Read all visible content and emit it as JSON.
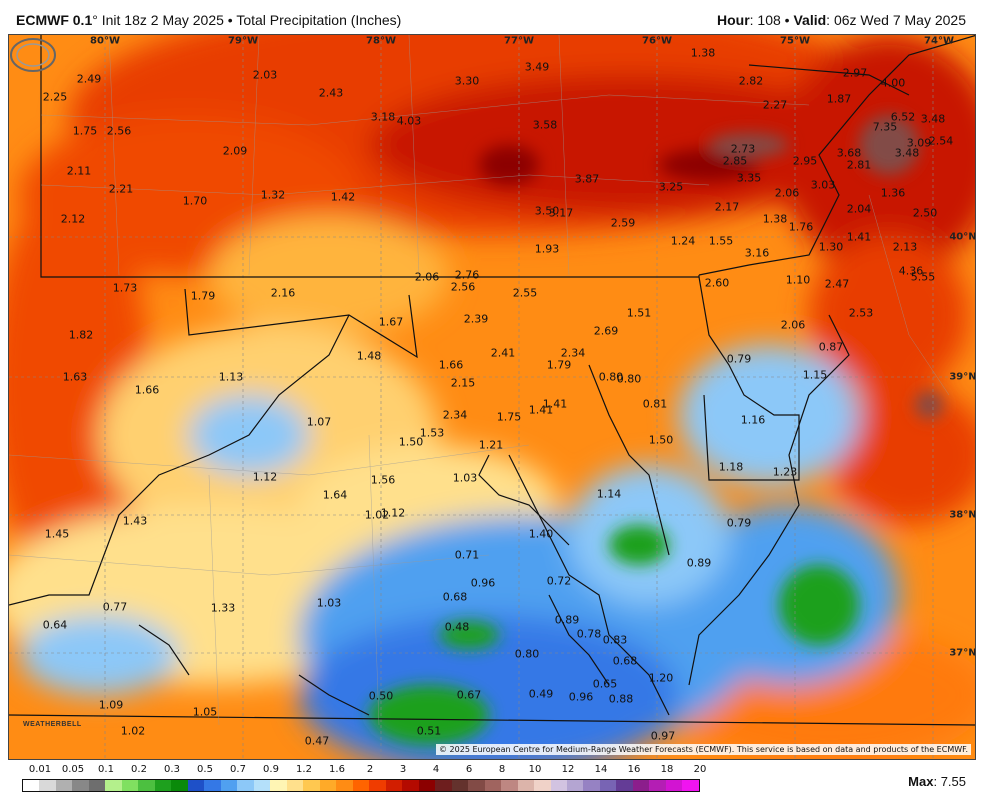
{
  "header": {
    "model": "ECMWF 0.1",
    "degree_symbol": "°",
    "init": "Init 18z 2 May 2025 • Total Precipitation (Inches)",
    "hour_label": "Hour",
    "hour_value": ": 108 • ",
    "valid_label": "Valid",
    "valid_value": ": 06z Wed 7 May 2025"
  },
  "map": {
    "longitudes": [
      "80°W",
      "79°W",
      "78°W",
      "77°W",
      "76°W",
      "75°W",
      "74°W"
    ],
    "latitudes": [
      "40°N",
      "39°N",
      "38°N",
      "37°N"
    ],
    "values": [
      "1.38",
      "2.49",
      "2.03",
      "3.30",
      "3.49",
      "2.82",
      "2.97",
      "4.00",
      "2.25",
      "2.43",
      "3.18",
      "4.03",
      "3.58",
      "2.27",
      "1.87",
      "6.52",
      "3.48",
      "1.75",
      "2.56",
      "7.35",
      "2.09",
      "2.73",
      "3.68",
      "3.48",
      "3.09",
      "2.54",
      "2.11",
      "2.85",
      "2.95",
      "2.81",
      "2.21",
      "3.87",
      "3.25",
      "3.35",
      "3.03",
      "1.70",
      "1.32",
      "1.42",
      "2.06",
      "1.36",
      "3.50",
      "3.17",
      "2.17",
      "2.04",
      "2.50",
      "2.12",
      "2.59",
      "1.38",
      "1.76",
      "1.24",
      "1.55",
      "1.41",
      "1.93",
      "1.30",
      "2.13",
      "3.16",
      "2.06",
      "2.76",
      "4.36",
      "1.10",
      "5.55",
      "1.73",
      "2.56",
      "2.60",
      "2.47",
      "1.79",
      "2.16",
      "2.55",
      "1.67",
      "1.51",
      "2.53",
      "2.39",
      "2.69",
      "2.06",
      "1.82",
      "1.48",
      "2.41",
      "2.34",
      "0.79",
      "0.87",
      "1.66",
      "1.79",
      "1.63",
      "1.13",
      "1.15",
      "2.15",
      "0.80",
      "0.80",
      "1.66",
      "1.41",
      "0.81",
      "1.07",
      "2.34",
      "1.75",
      "1.41",
      "1.16",
      "1.53",
      "1.50",
      "1.50",
      "1.21",
      "1.12",
      "1.56",
      "1.03",
      "1.18",
      "1.64",
      "1.02",
      "1.14",
      "1.23",
      "1.45",
      "1.43",
      "1.12",
      "0.79",
      "1.40",
      "0.71",
      "0.89",
      "0.96",
      "0.72",
      "0.77",
      "1.33",
      "1.03",
      "0.68",
      "0.64",
      "0.89",
      "0.48",
      "0.78",
      "0.83",
      "0.80",
      "0.68",
      "1.20",
      "0.50",
      "0.67",
      "0.49",
      "0.96",
      "0.65",
      "1.09",
      "0.88",
      "1.05",
      "1.02",
      "0.51",
      "0.47",
      "0.97"
    ],
    "copyright": "© 2025 European Centre for Medium-Range Weather Forecasts (ECMWF). This service is based on data and products of the ECMWF.",
    "logo_text": "WEATHERBELL"
  },
  "legend": {
    "ticks": [
      "0.01",
      "0.05",
      "0.1",
      "0.2",
      "0.3",
      "0.5",
      "0.7",
      "0.9",
      "1.2",
      "1.6",
      "2",
      "3",
      "4",
      "6",
      "8",
      "10",
      "12",
      "14",
      "16",
      "18",
      "20"
    ],
    "colors": [
      "#ffffff",
      "#d9d9d9",
      "#b0b0b0",
      "#888888",
      "#6e6e6e",
      "#b4f08c",
      "#80e060",
      "#4cc040",
      "#1ea01e",
      "#0a8a0a",
      "#1e50c8",
      "#3478e6",
      "#50a0f0",
      "#8cc8f8",
      "#b4e0fa",
      "#fff5b4",
      "#ffe08c",
      "#ffc850",
      "#ffaa28",
      "#ff8c14",
      "#ff6400",
      "#f03c00",
      "#d21e00",
      "#b40a00",
      "#8c0000",
      "#6e1e1e",
      "#64322d",
      "#824b46",
      "#a0645f",
      "#be8782",
      "#dcb4aa",
      "#f0d2c8",
      "#d2c3e1",
      "#b4a5d2",
      "#9682c3",
      "#7864b4",
      "#643c96",
      "#8c1e8c",
      "#b41eb4",
      "#d214d2",
      "#f014f0"
    ]
  },
  "max": {
    "label": "Max",
    "value": ": 7.55"
  }
}
